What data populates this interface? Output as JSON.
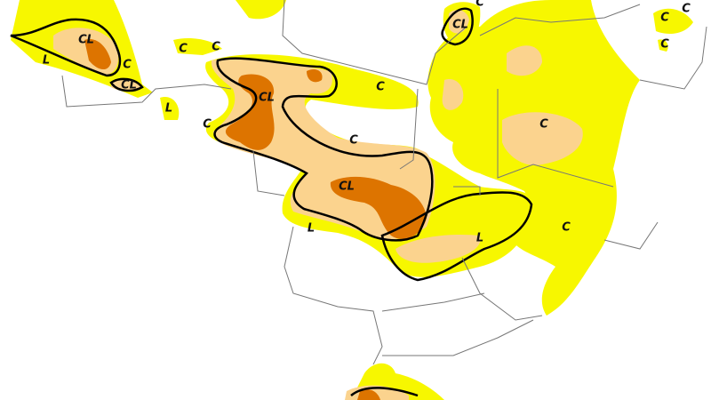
{
  "labels": [
    "CL",
    "L",
    "C",
    "CL",
    "C",
    "C",
    "CL",
    "C",
    "C",
    "C",
    "C",
    "CL",
    "C",
    "L",
    "C",
    "C",
    "C",
    "CL",
    "C",
    "L",
    "L"
  ]
}
